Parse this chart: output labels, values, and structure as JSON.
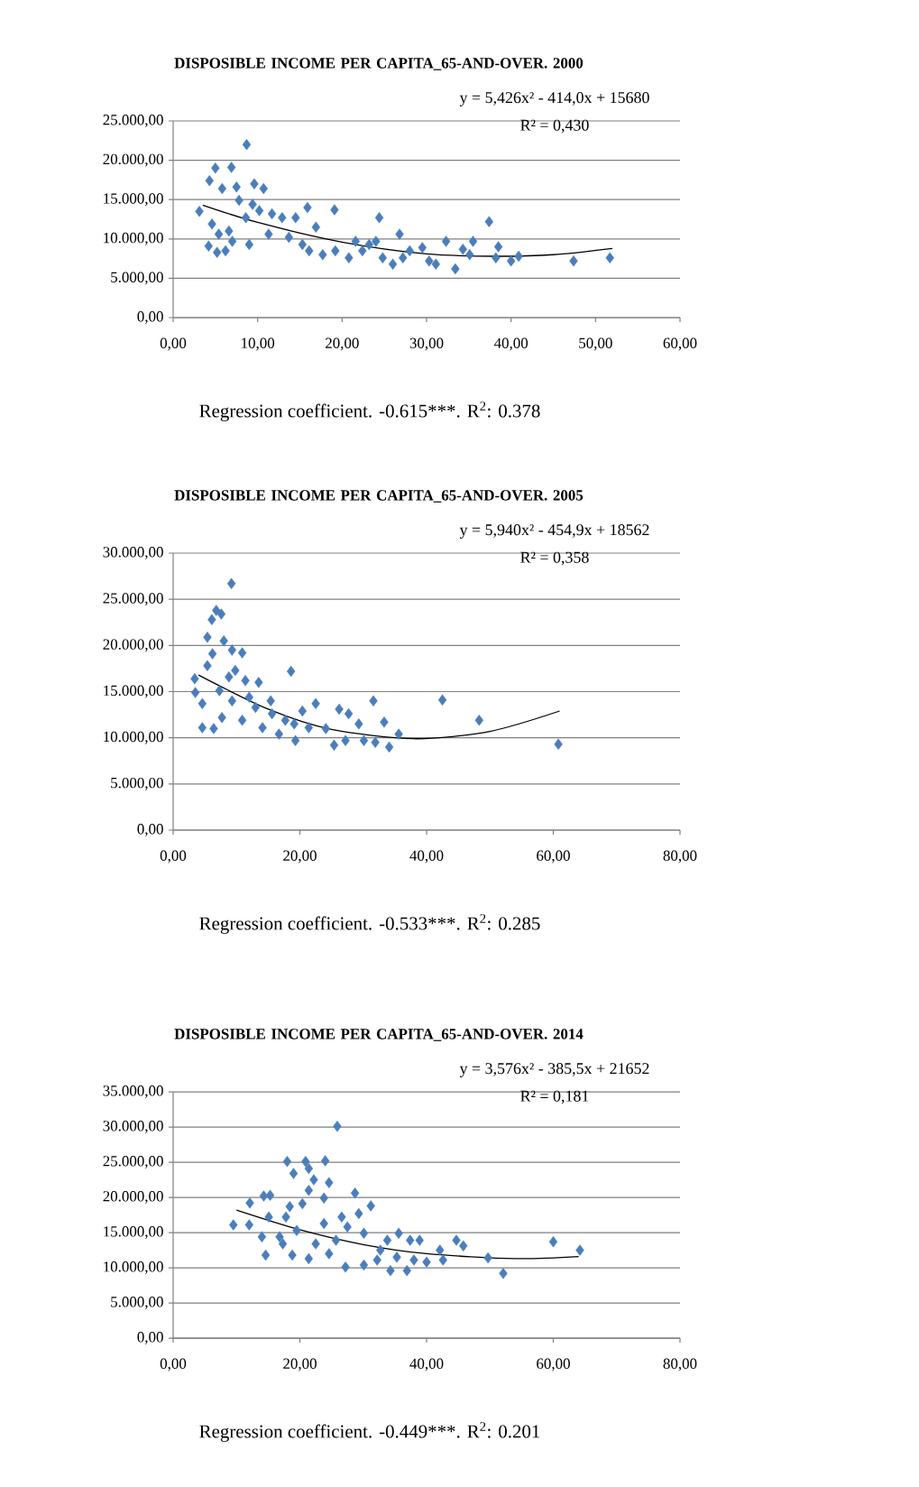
{
  "chart_data": [
    {
      "type": "scatter",
      "title": "DISPOSIBLE INCOME PER CAPITA_65-AND-OVER. 2000",
      "annotations": [
        "y = 5,426x² - 414,0x + 15680",
        "R² = 0,430",
        "Regression coefficient. -0.615***.  R$^{2}$: 0.378"
      ],
      "xlim": [
        0,
        60
      ],
      "ylim": [
        0,
        25000
      ],
      "xticks": [
        {
          "value": 0,
          "label": "0,00"
        },
        {
          "value": 10,
          "label": "10,00"
        },
        {
          "value": 20,
          "label": "20,00"
        },
        {
          "value": 30,
          "label": "30,00"
        },
        {
          "value": 40,
          "label": "40,00"
        },
        {
          "value": 50,
          "label": "50,00"
        },
        {
          "value": 60,
          "label": "60,00"
        }
      ],
      "yticks": [
        {
          "value": 0,
          "label": "0,00"
        },
        {
          "value": 5000,
          "label": "5.000,00"
        },
        {
          "value": 10000,
          "label": "10.000,00"
        },
        {
          "value": 15000,
          "label": "15.000,00"
        },
        {
          "value": 20000,
          "label": "20.000,00"
        },
        {
          "value": 25000,
          "label": "25.000,00"
        }
      ],
      "grid": "y",
      "marker": "diamond",
      "series": [
        {
          "color": "#4a7ebb",
          "x": [
            3.1,
            8.7,
            5.0,
            6.9,
            4.3,
            5.8,
            7.5,
            9.6,
            10.7,
            15.9,
            19.1,
            24.4,
            37.4,
            26.8,
            32.3,
            35.5,
            38.5,
            47.4,
            51.7,
            40.0,
            40.9,
            33.4,
            4.2,
            5.2,
            6.2,
            4.6,
            5.4,
            7.0,
            9.0,
            8.6,
            10.2,
            11.3,
            12.9,
            14.5,
            15.3,
            16.9,
            17.7,
            19.2,
            20.8,
            21.6,
            23.2,
            24.8,
            26.0,
            28.0,
            29.5,
            30.3,
            31.1,
            34.3,
            35.1,
            38.2,
            7.8,
            9.4,
            11.7,
            6.6,
            13.7,
            16.1,
            22.4,
            24.0,
            27.2
          ],
          "values": [
            13500,
            22000,
            19000,
            19100,
            17400,
            16400,
            16600,
            17000,
            16400,
            14000,
            13700,
            12700,
            12200,
            10600,
            9700,
            9700,
            9000,
            7200,
            7600,
            7200,
            7800,
            6200,
            9100,
            8300,
            8500,
            11900,
            10600,
            9700,
            9300,
            12700,
            13600,
            10600,
            12700,
            12700,
            9300,
            11500,
            8000,
            8500,
            7600,
            9700,
            9300,
            7600,
            6800,
            8500,
            8900,
            7200,
            6800,
            8700,
            8000,
            7600,
            14900,
            14400,
            13200,
            11000,
            10200,
            8500,
            8500,
            9700,
            7600
          ]
        },
        {
          "type": "line",
          "color": "#000000",
          "marker": "none",
          "x": [
            3.5,
            10,
            20,
            30,
            38,
            45,
            52
          ],
          "values": [
            14300,
            12100,
            9600,
            8100,
            7800,
            8000,
            8800
          ]
        }
      ]
    },
    {
      "type": "scatter",
      "title": "DISPOSIBLE INCOME PER CAPITA_65-AND-OVER. 2005",
      "annotations": [
        "y = 5,940x² - 454,9x + 18562",
        "R² = 0,358",
        "Regression coefficient. -0.533***.  R$^{2}$: 0.285"
      ],
      "xlim": [
        0,
        80
      ],
      "ylim": [
        0,
        30000
      ],
      "xticks": [
        {
          "value": 0,
          "label": "0,00"
        },
        {
          "value": 20,
          "label": "20,00"
        },
        {
          "value": 40,
          "label": "40,00"
        },
        {
          "value": 60,
          "label": "60,00"
        },
        {
          "value": 80,
          "label": "80,00"
        }
      ],
      "yticks": [
        {
          "value": 0,
          "label": "0,00"
        },
        {
          "value": 5000,
          "label": "5.000,00"
        },
        {
          "value": 10000,
          "label": "10.000,00"
        },
        {
          "value": 15000,
          "label": "15.000,00"
        },
        {
          "value": 20000,
          "label": "20.000,00"
        },
        {
          "value": 25000,
          "label": "25.000,00"
        },
        {
          "value": 30000,
          "label": "30.000,00"
        }
      ],
      "grid": "y",
      "marker": "diamond",
      "series": [
        {
          "color": "#4a7ebb",
          "x": [
            9.2,
            6.1,
            7.6,
            6.8,
            5.4,
            8.0,
            10.9,
            9.3,
            6.2,
            5.4,
            18.6,
            3.4,
            3.5,
            13.5,
            11.4,
            8.8,
            4.6,
            4.6,
            6.4,
            7.7,
            9.3,
            10.9,
            14.1,
            15.4,
            16.7,
            19.3,
            19.1,
            20.4,
            22.5,
            24.1,
            25.4,
            26.2,
            27.7,
            29.3,
            27.2,
            30.1,
            31.6,
            31.9,
            33.3,
            34.1,
            35.6,
            42.5,
            48.3,
            60.8,
            12.0,
            7.3,
            9.8,
            15.6,
            21.4,
            17.7,
            13.0
          ],
          "values": [
            26700,
            22800,
            23400,
            23800,
            20900,
            20500,
            19200,
            19500,
            19100,
            17800,
            17200,
            16400,
            14900,
            16000,
            16200,
            16600,
            13700,
            11100,
            11000,
            12200,
            14000,
            11900,
            11100,
            14000,
            10400,
            9700,
            11500,
            12900,
            13700,
            11000,
            9200,
            13100,
            12600,
            11500,
            9700,
            9700,
            14000,
            9500,
            11700,
            9000,
            10400,
            14100,
            11900,
            9300,
            14400,
            15100,
            17300,
            12600,
            11100,
            11900,
            13300
          ]
        },
        {
          "type": "line",
          "color": "#000000",
          "marker": "none",
          "x": [
            4,
            15,
            25,
            38,
            50,
            61
          ],
          "values": [
            16800,
            13100,
            10900,
            9900,
            10700,
            12900
          ]
        }
      ]
    },
    {
      "type": "scatter",
      "title": "DISPOSIBLE INCOME PER CAPITA_65-AND-OVER. 2014",
      "annotations": [
        "y = 3,576x² - 385,5x + 21652",
        "R² = 0,181",
        "Regression coefficient. -0.449***.  R$^{2}$: 0.201"
      ],
      "xlim": [
        0,
        80
      ],
      "ylim": [
        0,
        35000
      ],
      "xticks": [
        {
          "value": 0,
          "label": "0,00"
        },
        {
          "value": 20,
          "label": "20,00"
        },
        {
          "value": 40,
          "label": "40,00"
        },
        {
          "value": 60,
          "label": "60,00"
        },
        {
          "value": 80,
          "label": "80,00"
        }
      ],
      "yticks": [
        {
          "value": 0,
          "label": "0,00"
        },
        {
          "value": 5000,
          "label": "5.000,00"
        },
        {
          "value": 10000,
          "label": "10.000,00"
        },
        {
          "value": 15000,
          "label": "15.000,00"
        },
        {
          "value": 20000,
          "label": "20.000,00"
        },
        {
          "value": 25000,
          "label": "25.000,00"
        },
        {
          "value": 30000,
          "label": "30.000,00"
        },
        {
          "value": 35000,
          "label": "35.000,00"
        }
      ],
      "grid": "y",
      "marker": "diamond",
      "series": [
        {
          "color": "#4a7ebb",
          "x": [
            25.9,
            18.0,
            20.9,
            24.0,
            19.0,
            21.4,
            22.2,
            24.6,
            21.4,
            28.7,
            14.3,
            15.3,
            12.1,
            31.2,
            23.8,
            20.4,
            29.3,
            26.6,
            9.5,
            12.0,
            15.1,
            17.8,
            14.0,
            14.6,
            18.8,
            21.4,
            22.5,
            16.8,
            19.5,
            24.6,
            27.2,
            30.1,
            30.1,
            32.2,
            33.8,
            34.3,
            35.6,
            36.9,
            37.4,
            38.9,
            40.0,
            42.1,
            42.6,
            44.7,
            45.8,
            49.7,
            52.1,
            60.0,
            64.2,
            27.5,
            23.8,
            32.7,
            35.3,
            38.0,
            18.4,
            17.3,
            25.7
          ],
          "values": [
            30100,
            25100,
            25100,
            25200,
            23400,
            24100,
            22500,
            22100,
            21000,
            20600,
            20200,
            20300,
            19200,
            18800,
            19900,
            19100,
            17700,
            17200,
            16100,
            16100,
            17200,
            17200,
            14400,
            11800,
            11800,
            11300,
            13400,
            14400,
            15300,
            12000,
            10100,
            10400,
            14900,
            11100,
            13900,
            9600,
            14900,
            9600,
            13900,
            13900,
            10800,
            12500,
            11100,
            13900,
            13100,
            11400,
            9200,
            13700,
            12500,
            15800,
            16300,
            12500,
            11500,
            11100,
            18700,
            13400,
            13900
          ]
        },
        {
          "type": "line",
          "color": "#000000",
          "marker": "none",
          "x": [
            10,
            20,
            30,
            40,
            54,
            64
          ],
          "values": [
            18200,
            15400,
            13300,
            12000,
            11300,
            11600
          ]
        }
      ]
    }
  ]
}
